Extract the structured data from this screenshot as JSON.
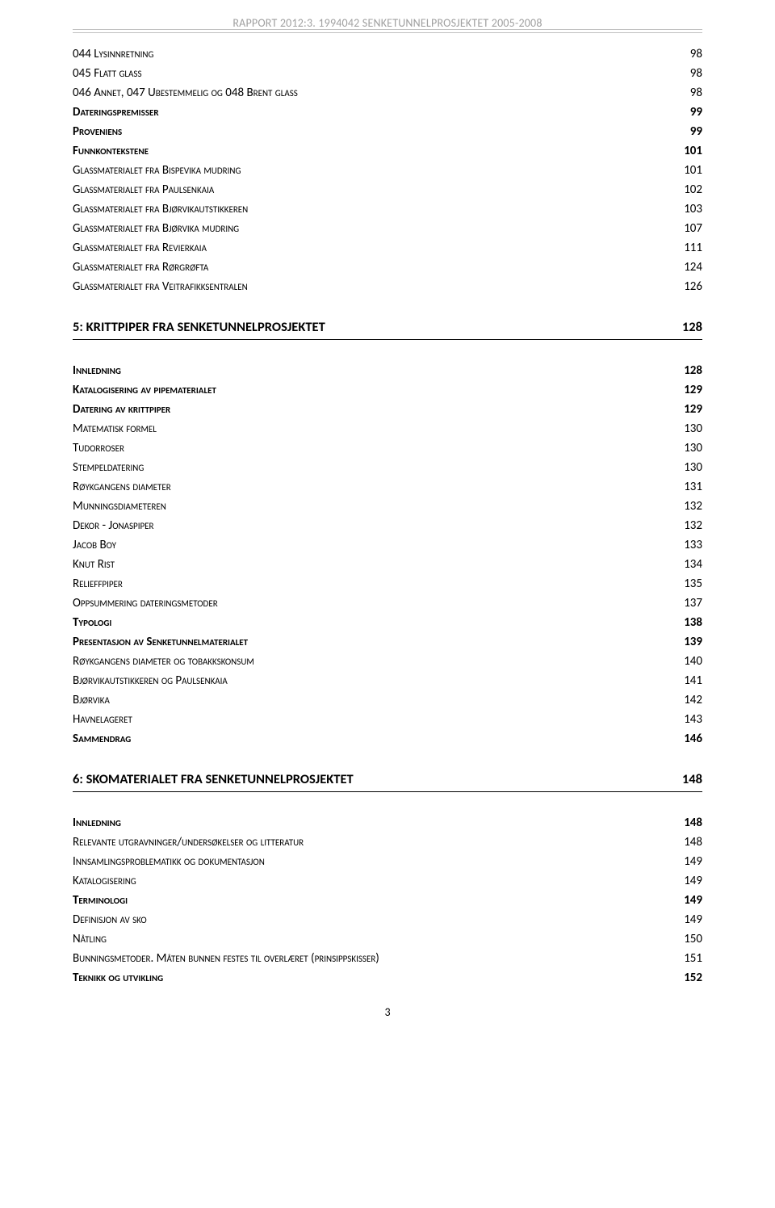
{
  "header": {
    "text": "RAPPORT 2012:3. 1994042 SENKETUNNELPROSJEKTET 2005-2008"
  },
  "block1": [
    {
      "label": "044 Lysinnretning",
      "page": "98",
      "bold": false
    },
    {
      "label": "045 Flatt glass",
      "page": "98",
      "bold": false
    },
    {
      "label": "046 Annet, 047 Ubestemmelig og 048 Brent glass",
      "page": "98",
      "bold": false
    },
    {
      "label": "Dateringspremisser",
      "page": "99",
      "bold": true
    },
    {
      "label": "Proveniens",
      "page": "99",
      "bold": true
    },
    {
      "label": "Funnkontekstene",
      "page": "101",
      "bold": true
    },
    {
      "label": "Glassmaterialet fra Bispevika mudring",
      "page": "101",
      "bold": false
    },
    {
      "label": "Glassmaterialet fra Paulsenkaia",
      "page": "102",
      "bold": false
    },
    {
      "label": "Glassmaterialet fra Bjørvikautstikkeren",
      "page": "103",
      "bold": false
    },
    {
      "label": "Glassmaterialet fra Bjørvika mudring",
      "page": "107",
      "bold": false
    },
    {
      "label": "Glassmaterialet fra Revierkaia",
      "page": "111",
      "bold": false
    },
    {
      "label": "Glassmaterialet fra Rørgrøfta",
      "page": "124",
      "bold": false
    },
    {
      "label": "Glassmaterialet fra Veitrafikksentralen",
      "page": "126",
      "bold": false
    }
  ],
  "section5": {
    "label": "5: KRITTPIPER FRA SENKETUNNELPROSJEKTET",
    "page": "128"
  },
  "block2": [
    {
      "label": "Innledning",
      "page": "128",
      "bold": true
    },
    {
      "label": "Katalogisering av pipematerialet",
      "page": "129",
      "bold": true
    },
    {
      "label": "Datering av krittpiper",
      "page": "129",
      "bold": true
    },
    {
      "label": "Matematisk formel",
      "page": "130",
      "bold": false
    },
    {
      "label": "Tudorroser",
      "page": "130",
      "bold": false
    },
    {
      "label": "Stempeldatering",
      "page": "130",
      "bold": false
    },
    {
      "label": "Røykgangens diameter",
      "page": "131",
      "bold": false
    },
    {
      "label": "Munningsdiameteren",
      "page": "132",
      "bold": false
    },
    {
      "label": "Dekor - Jonaspiper",
      "page": "132",
      "bold": false
    },
    {
      "label": "Jacob Boy",
      "page": "133",
      "bold": false
    },
    {
      "label": "Knut Rist",
      "page": "134",
      "bold": false
    },
    {
      "label": "Relieffpiper",
      "page": "135",
      "bold": false
    },
    {
      "label": "Oppsummering dateringsmetoder",
      "page": "137",
      "bold": false
    },
    {
      "label": "Typologi",
      "page": "138",
      "bold": true
    },
    {
      "label": "Presentasjon av Senketunnelmaterialet",
      "page": "139",
      "bold": true
    },
    {
      "label": "Røykgangens diameter og tobakkskonsum",
      "page": "140",
      "bold": false
    },
    {
      "label": "Bjørvikautstikkeren og Paulsenkaia",
      "page": "141",
      "bold": false
    },
    {
      "label": "Bjørvika",
      "page": "142",
      "bold": false
    },
    {
      "label": "Havnelageret",
      "page": "143",
      "bold": false
    },
    {
      "label": "Sammendrag",
      "page": "146",
      "bold": true
    }
  ],
  "section6": {
    "label": "6: SKOMATERIALET FRA SENKETUNNELPROSJEKTET",
    "page": "148"
  },
  "block3": [
    {
      "label": "Innledning",
      "page": "148",
      "bold": true
    },
    {
      "label": "Relevante utgravninger/undersøkelser og litteratur",
      "page": "148",
      "bold": false
    },
    {
      "label": "Innsamlingsproblematikk og dokumentasjon",
      "page": "149",
      "bold": false
    },
    {
      "label": "Katalogisering",
      "page": "149",
      "bold": false
    },
    {
      "label": "Terminologi",
      "page": "149",
      "bold": true
    },
    {
      "label": "Definisjon av sko",
      "page": "149",
      "bold": false
    },
    {
      "label": "Nåtling",
      "page": "150",
      "bold": false
    },
    {
      "label": "Bunningsmetoder. Måten bunnen festes til overlæret (prinsippskisser)",
      "page": "151",
      "bold": false
    },
    {
      "label": "Teknikk og utvikling",
      "page": "152",
      "bold": true
    }
  ],
  "footer": {
    "page_number": "3"
  }
}
